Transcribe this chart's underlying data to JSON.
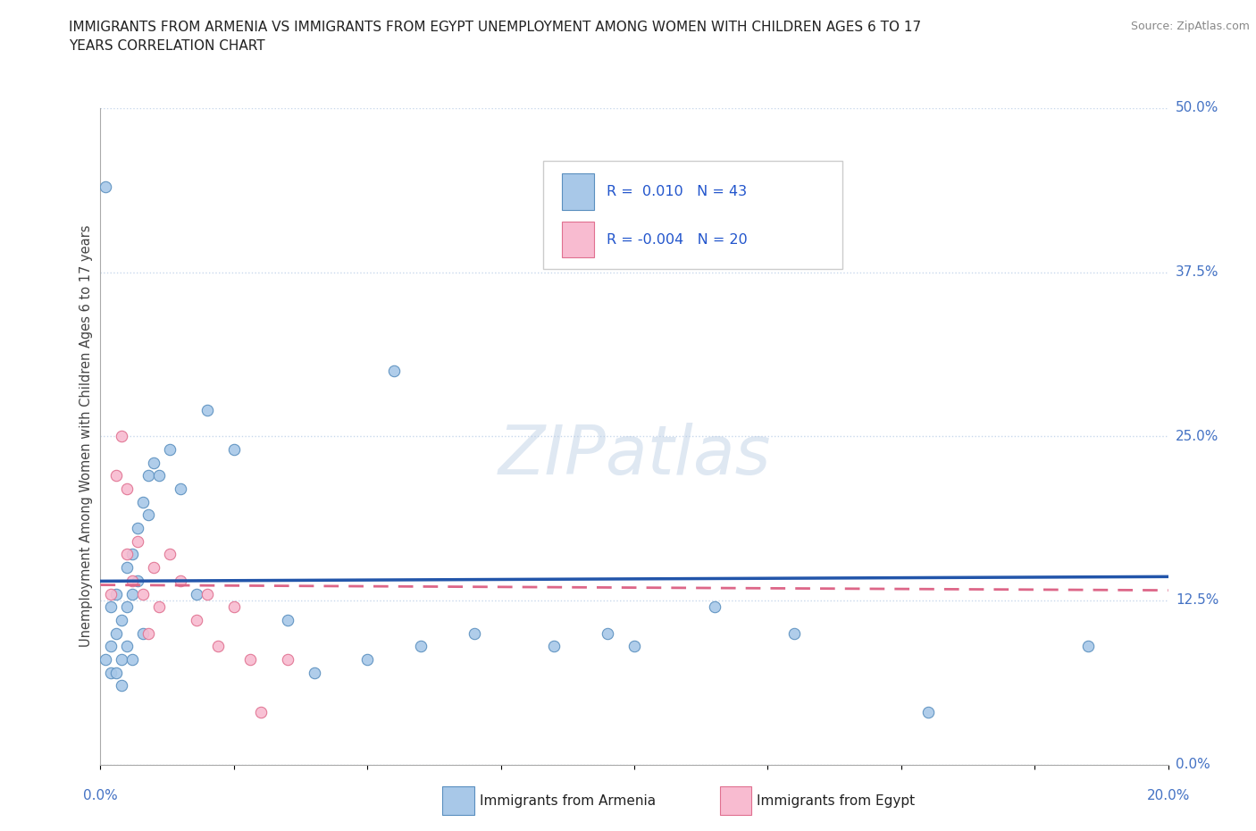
{
  "title_line1": "IMMIGRANTS FROM ARMENIA VS IMMIGRANTS FROM EGYPT UNEMPLOYMENT AMONG WOMEN WITH CHILDREN AGES 6 TO 17",
  "title_line2": "YEARS CORRELATION CHART",
  "source_text": "Source: ZipAtlas.com",
  "ylabel": "Unemployment Among Women with Children Ages 6 to 17 years",
  "xlim": [
    0.0,
    0.2
  ],
  "ylim": [
    0.0,
    0.5
  ],
  "xticks": [
    0.0,
    0.025,
    0.05,
    0.075,
    0.1,
    0.125,
    0.15,
    0.175,
    0.2
  ],
  "yticks": [
    0.0,
    0.125,
    0.25,
    0.375,
    0.5
  ],
  "watermark": "ZIPatlas",
  "armenia_color": "#a8c8e8",
  "egypt_color": "#f8bbd0",
  "armenia_edge": "#5a8fbf",
  "egypt_edge": "#e07090",
  "armenia_R": 0.01,
  "armenia_N": 43,
  "egypt_R": -0.004,
  "egypt_N": 20,
  "armenia_scatter_x": [
    0.001,
    0.001,
    0.002,
    0.002,
    0.002,
    0.003,
    0.003,
    0.003,
    0.004,
    0.004,
    0.004,
    0.005,
    0.005,
    0.005,
    0.006,
    0.006,
    0.006,
    0.007,
    0.007,
    0.008,
    0.008,
    0.009,
    0.009,
    0.01,
    0.011,
    0.013,
    0.015,
    0.018,
    0.02,
    0.025,
    0.035,
    0.04,
    0.05,
    0.055,
    0.06,
    0.07,
    0.085,
    0.095,
    0.1,
    0.115,
    0.13,
    0.155,
    0.185
  ],
  "armenia_scatter_y": [
    0.44,
    0.08,
    0.12,
    0.09,
    0.07,
    0.13,
    0.1,
    0.07,
    0.11,
    0.08,
    0.06,
    0.15,
    0.12,
    0.09,
    0.16,
    0.13,
    0.08,
    0.18,
    0.14,
    0.2,
    0.1,
    0.22,
    0.19,
    0.23,
    0.22,
    0.24,
    0.21,
    0.13,
    0.27,
    0.24,
    0.11,
    0.07,
    0.08,
    0.3,
    0.09,
    0.1,
    0.09,
    0.1,
    0.09,
    0.12,
    0.1,
    0.04,
    0.09
  ],
  "egypt_scatter_x": [
    0.002,
    0.003,
    0.004,
    0.005,
    0.005,
    0.006,
    0.007,
    0.008,
    0.009,
    0.01,
    0.011,
    0.013,
    0.015,
    0.018,
    0.02,
    0.022,
    0.025,
    0.028,
    0.03,
    0.035
  ],
  "egypt_scatter_y": [
    0.13,
    0.22,
    0.25,
    0.21,
    0.16,
    0.14,
    0.17,
    0.13,
    0.1,
    0.15,
    0.12,
    0.16,
    0.14,
    0.11,
    0.13,
    0.09,
    0.12,
    0.08,
    0.04,
    0.08
  ],
  "trend_line_color_armenia": "#2255aa",
  "trend_line_color_egypt": "#dd6688",
  "background_color": "#ffffff",
  "grid_color": "#c8d8ec",
  "title_color": "#222222",
  "axis_label_color": "#444444",
  "tick_label_color_right": "#4472c4",
  "marker_size": 80
}
